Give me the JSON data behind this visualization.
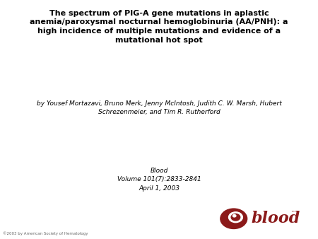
{
  "title_line1": "The spectrum of PIG-A gene mutations in aplastic",
  "title_line2": "anemia/paroxysmal nocturnal hemoglobinuria (AA/PNH): a",
  "title_line3": "high incidence of multiple mutations and evidence of a",
  "title_line4": "mutational hot spot",
  "authors_line1": "by Yousef Mortazavi, Bruno Merk, Jenny McIntosh, Judith C. W. Marsh, Hubert",
  "authors_line2": "Schrezenmeier, and Tim R. Rutherford",
  "journal_line1": "Blood",
  "journal_line2": "Volume 101(7):2833-2841",
  "journal_line3": "April 1, 2003",
  "copyright": "©2003 by American Society of Hematology",
  "blood_text": "blood",
  "blood_color": "#8B1A1A",
  "background_color": "#ffffff",
  "title_fontsize": 8.0,
  "authors_fontsize": 6.5,
  "journal_fontsize": 6.5,
  "copyright_fontsize": 4.0
}
